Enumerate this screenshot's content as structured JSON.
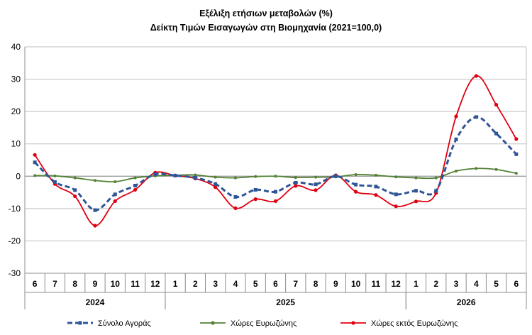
{
  "chart_data": {
    "type": "line",
    "title": "Εξέλιξη ετήσιων μεταβολών (%)",
    "subtitle": "Δείκτη Τιμών Εισαγωγών στη Βιομηχανία (2021=100,0)",
    "ylim": [
      -30,
      40
    ],
    "yticks": [
      -30,
      -20,
      -10,
      0,
      10,
      20,
      30,
      40
    ],
    "grid": "horizontal",
    "legend_position": "bottom",
    "categories": [
      "6",
      "7",
      "8",
      "9",
      "10",
      "11",
      "12",
      "1",
      "2",
      "3",
      "4",
      "5",
      "6",
      "7",
      "8",
      "9",
      "10",
      "11",
      "12",
      "1",
      "2",
      "3",
      "4",
      "5",
      "6"
    ],
    "year_groups": [
      {
        "label": "2024",
        "start": 0,
        "end": 6
      },
      {
        "label": "2025",
        "start": 7,
        "end": 18
      },
      {
        "label": "2026",
        "start": 19,
        "end": 24
      }
    ],
    "series": [
      {
        "name": "Σύνολο Αγοράς",
        "color": "#2f5597",
        "style": "dashed",
        "marker": "square",
        "values": [
          4.3,
          -1.8,
          -4.3,
          -10.5,
          -5.6,
          -2.9,
          0.6,
          0.2,
          -0.5,
          -2.4,
          -6.4,
          -4.2,
          -4.8,
          -2.0,
          -2.5,
          0.0,
          -2.6,
          -3.2,
          -5.6,
          -4.5,
          -4.5,
          11.4,
          18.3,
          13.2,
          6.8
        ]
      },
      {
        "name": "Χώρες Ευρωζώνης",
        "color": "#538135",
        "style": "solid",
        "marker": "circle",
        "values": [
          0.2,
          0.1,
          -0.5,
          -1.3,
          -1.7,
          -0.5,
          0.1,
          0.3,
          0.4,
          -0.3,
          -0.5,
          -0.1,
          0.0,
          -0.4,
          -0.3,
          -0.2,
          0.5,
          0.3,
          -0.2,
          -0.5,
          -0.5,
          1.6,
          2.4,
          2.1,
          0.9
        ]
      },
      {
        "name": "Χώρες εκτός Ευρωζώνης",
        "color": "#e0000f",
        "style": "solid",
        "marker": "circle",
        "values": [
          6.6,
          -2.4,
          -6.2,
          -15.3,
          -7.7,
          -4.2,
          1.1,
          0.2,
          -0.7,
          -3.4,
          -9.9,
          -7.1,
          -7.7,
          -3.0,
          -4.3,
          0.3,
          -4.8,
          -5.8,
          -9.3,
          -7.8,
          -5.2,
          18.5,
          31.0,
          22.1,
          11.5
        ]
      }
    ]
  }
}
